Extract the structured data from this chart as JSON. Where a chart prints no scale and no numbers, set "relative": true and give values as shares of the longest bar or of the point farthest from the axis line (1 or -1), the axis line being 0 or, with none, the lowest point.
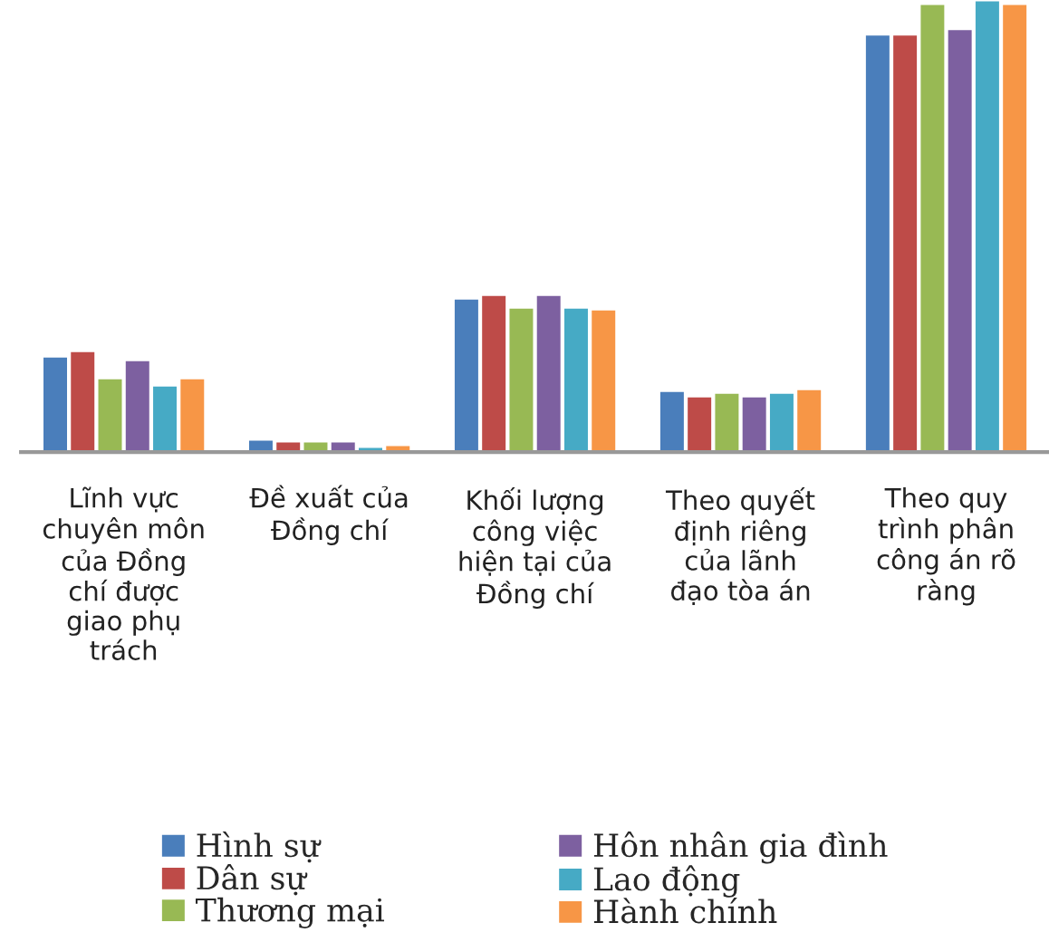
{
  "chart_data": {
    "type": "bar",
    "relative": true,
    "categories": [
      "Lĩnh vực\nchuyên môn\ncủa Đồng\nchí được\ngiao phụ\ntrách",
      "Đề xuất của\nĐồng chí",
      "Khối lượng\ncông việc\nhiện tại của\nĐồng chí",
      "Theo quyết\nđịnh riêng\ncủa lãnh\nđạo tòa án",
      "Theo quy\ntrình phân\ncông án rõ\nràng"
    ],
    "series": [
      {
        "name": "Hình sự",
        "color": "#4a7ebb",
        "values": [
          0.212,
          0.028,
          0.34,
          0.136,
          0.924
        ]
      },
      {
        "name": "Dân sự",
        "color": "#be4b48",
        "values": [
          0.224,
          0.024,
          0.348,
          0.124,
          0.924
        ]
      },
      {
        "name": "Thương mại",
        "color": "#98b954",
        "values": [
          0.164,
          0.024,
          0.32,
          0.132,
          0.992
        ]
      },
      {
        "name": "Hôn nhân gia đình",
        "color": "#7d60a0",
        "values": [
          0.204,
          0.024,
          0.348,
          0.124,
          0.936
        ]
      },
      {
        "name": "Lao động",
        "color": "#46aac5",
        "values": [
          0.148,
          0.012,
          0.32,
          0.132,
          1.0
        ]
      },
      {
        "name": "Hành chính",
        "color": "#f79646",
        "values": [
          0.164,
          0.016,
          0.316,
          0.14,
          0.992
        ]
      }
    ],
    "legend": "bottom",
    "grid": false
  }
}
